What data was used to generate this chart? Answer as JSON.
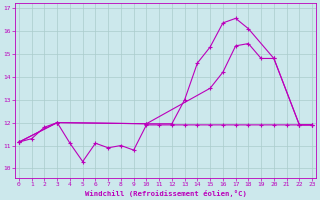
{
  "xlabel": "Windchill (Refroidissement éolien,°C)",
  "bg_color": "#cce8ec",
  "line_color": "#bb00bb",
  "grid_color": "#aacccc",
  "x_ticks": [
    0,
    1,
    2,
    3,
    4,
    5,
    6,
    7,
    8,
    9,
    10,
    11,
    12,
    13,
    14,
    15,
    16,
    17,
    18,
    19,
    20,
    21,
    22,
    23
  ],
  "y_ticks": [
    10,
    11,
    12,
    13,
    14,
    15,
    16,
    17
  ],
  "ylim": [
    9.6,
    17.2
  ],
  "xlim": [
    -0.3,
    23.3
  ],
  "line1_x": [
    0,
    1,
    2,
    3,
    4,
    5,
    6,
    7,
    8,
    9,
    10,
    11,
    12,
    13,
    14,
    15,
    16,
    17,
    18,
    19,
    20,
    21,
    22,
    23
  ],
  "line1_y": [
    11.15,
    11.3,
    11.8,
    12.0,
    11.1,
    10.3,
    11.1,
    10.9,
    11.0,
    10.8,
    11.9,
    11.9,
    11.9,
    11.9,
    11.9,
    11.9,
    11.9,
    11.9,
    11.9,
    11.9,
    11.9,
    11.9,
    11.9,
    11.9
  ],
  "line2_x": [
    0,
    3,
    10,
    15,
    16,
    17,
    18,
    19,
    20,
    22,
    23
  ],
  "line2_y": [
    11.15,
    12.0,
    11.95,
    13.5,
    14.2,
    15.35,
    15.45,
    14.8,
    14.8,
    11.9,
    11.9
  ],
  "line3_x": [
    0,
    3,
    10,
    12,
    13,
    14,
    15,
    16,
    17,
    18,
    20,
    22,
    23
  ],
  "line3_y": [
    11.15,
    12.0,
    11.95,
    11.95,
    13.0,
    14.6,
    15.3,
    16.35,
    16.55,
    16.1,
    14.8,
    11.9,
    11.9
  ]
}
